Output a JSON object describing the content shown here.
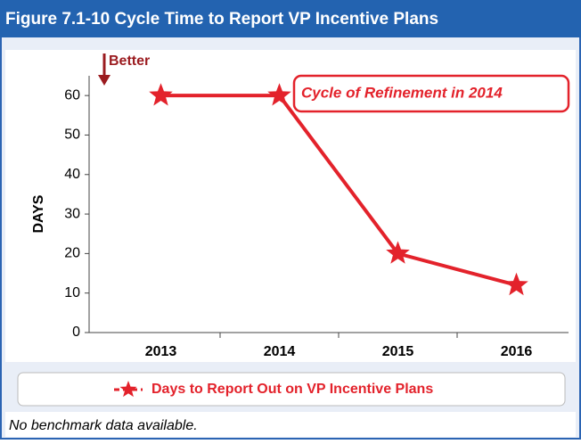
{
  "chart_data": {
    "type": "line",
    "title": "Figure 7.1-10 Cycle Time to Report VP Incentive Plans",
    "ylabel": "DAYS",
    "categories": [
      "2013",
      "2014",
      "2015",
      "2016"
    ],
    "series": [
      {
        "name": "Days to Report Out on VP Incentive Plans",
        "color": "#e3222b",
        "values": [
          60,
          60,
          20,
          12
        ]
      }
    ],
    "ylim": [
      0,
      65
    ],
    "yticks": [
      0,
      10,
      20,
      30,
      40,
      50,
      60
    ],
    "annotations": [
      "Better",
      "Cycle of Refinement in 2014"
    ],
    "note": "No benchmark data available."
  }
}
